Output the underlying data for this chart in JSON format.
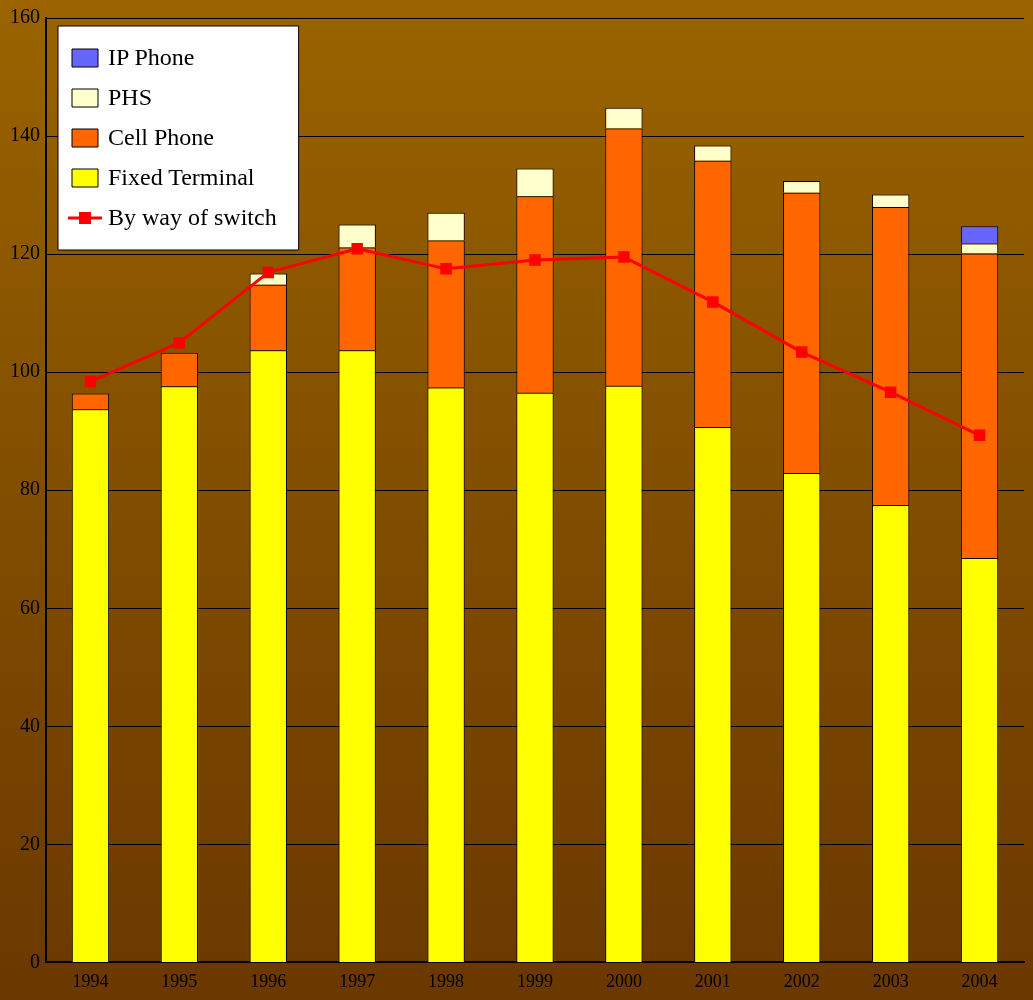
{
  "chart_data": {
    "type": "bar",
    "stacked": true,
    "categories": [
      "1994",
      "1995",
      "1996",
      "1997",
      "1998",
      "1999",
      "2000",
      "2001",
      "2002",
      "2003",
      "2004"
    ],
    "series": [
      {
        "name": "Fixed Terminal",
        "color": "#ffff00",
        "values": [
          93.7,
          97.6,
          103.7,
          103.7,
          97.4,
          96.5,
          97.7,
          90.7,
          82.9,
          77.5,
          68.5
        ]
      },
      {
        "name": "Cell Phone",
        "color": "#ff6600",
        "values": [
          2.7,
          5.7,
          11.1,
          17.4,
          24.9,
          33.3,
          43.6,
          45.1,
          47.5,
          50.5,
          51.6
        ]
      },
      {
        "name": "PHS",
        "color": "#ffffcc",
        "values": [
          null,
          null,
          1.9,
          3.9,
          4.7,
          4.7,
          3.5,
          2.6,
          2.0,
          2.1,
          1.7
        ]
      },
      {
        "name": "IP Phone",
        "color": "#6666ff",
        "values": [
          null,
          null,
          null,
          null,
          null,
          null,
          null,
          null,
          null,
          null,
          2.9
        ]
      },
      {
        "name": "By way of switch",
        "type": "line",
        "color": "#ff0000",
        "marker": "square",
        "values": [
          98.4,
          105.0,
          116.9,
          120.9,
          117.5,
          119.0,
          119.5,
          111.9,
          103.4,
          96.6,
          89.3
        ]
      }
    ],
    "ylim": [
      0,
      160
    ],
    "yticks": [
      0,
      20,
      40,
      60,
      80,
      100,
      120,
      140,
      160
    ],
    "grid": "y",
    "legend": "top left"
  }
}
